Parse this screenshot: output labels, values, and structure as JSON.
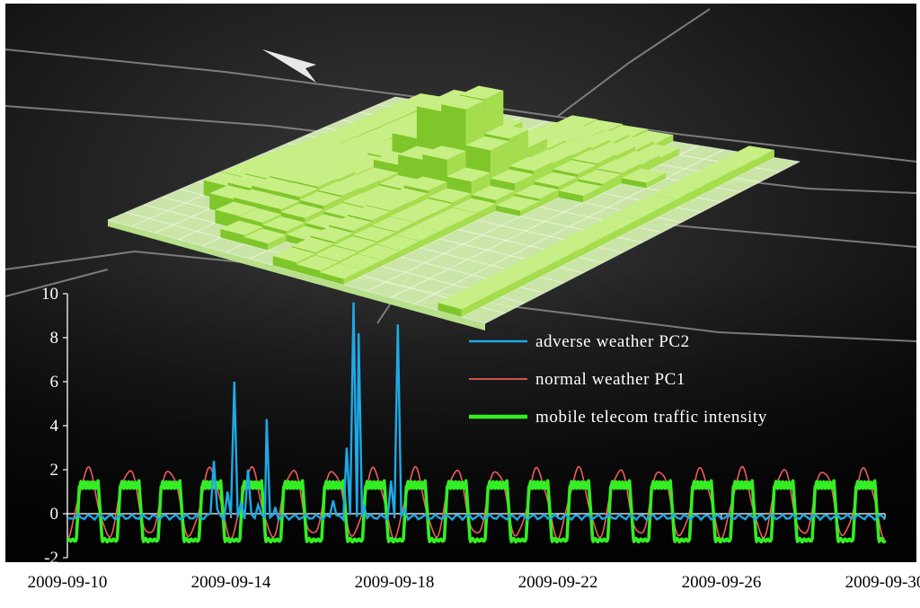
{
  "chart_data": {
    "type": "line",
    "title": "",
    "xlabel": "",
    "ylabel": "",
    "ylim": [
      -2,
      10
    ],
    "xlim": [
      "2009-09-10",
      "2009-09-30"
    ],
    "yticks": [
      "-2",
      "0",
      "2",
      "4",
      "6",
      "8",
      "10"
    ],
    "xticks": [
      "2009-09-10",
      "2009-09-14",
      "2009-09-18",
      "2009-09-22",
      "2009-09-26",
      "2009-09-30"
    ],
    "legend_position": "center-right",
    "grid": false,
    "background": "dark map with 3D green bar surface of traffic intensity",
    "series": [
      {
        "name": "adverse weather PC2",
        "color": "#1fa8e6",
        "note": "near 0 baseline with spikes",
        "points": [
          [
            "2009-09-13 12:00",
            0.0
          ],
          [
            "2009-09-13 14:00",
            2.4
          ],
          [
            "2009-09-13 16:00",
            0.2
          ],
          [
            "2009-09-13 22:00",
            1.0
          ],
          [
            "2009-09-14 02:00",
            6.0
          ],
          [
            "2009-09-14 06:00",
            0.5
          ],
          [
            "2009-09-14 10:00",
            2.0
          ],
          [
            "2009-09-14 16:00",
            0.4
          ],
          [
            "2009-09-14 21:00",
            4.3
          ],
          [
            "2009-09-15 02:00",
            0.3
          ],
          [
            "2009-09-16 12:00",
            0.6
          ],
          [
            "2009-09-16 20:00",
            3.0
          ],
          [
            "2009-09-17 00:00",
            9.6
          ],
          [
            "2009-09-17 03:00",
            8.2
          ],
          [
            "2009-09-17 06:00",
            0.4
          ],
          [
            "2009-09-17 22:00",
            1.5
          ],
          [
            "2009-09-18 02:00",
            8.6
          ],
          [
            "2009-09-18 06:00",
            0.2
          ]
        ]
      },
      {
        "name": "normal weather PC1",
        "color": "#f05a5a",
        "note": "daily cycle, peaks near 2, troughs near -1",
        "peak": 2.0,
        "trough": -1.0
      },
      {
        "name": "mobile telecom traffic intensity",
        "color": "#33ee22",
        "note": "daily cycle, peaks near 1.5, troughs near -1.2",
        "peak": 1.5,
        "trough": -1.2
      }
    ]
  }
}
